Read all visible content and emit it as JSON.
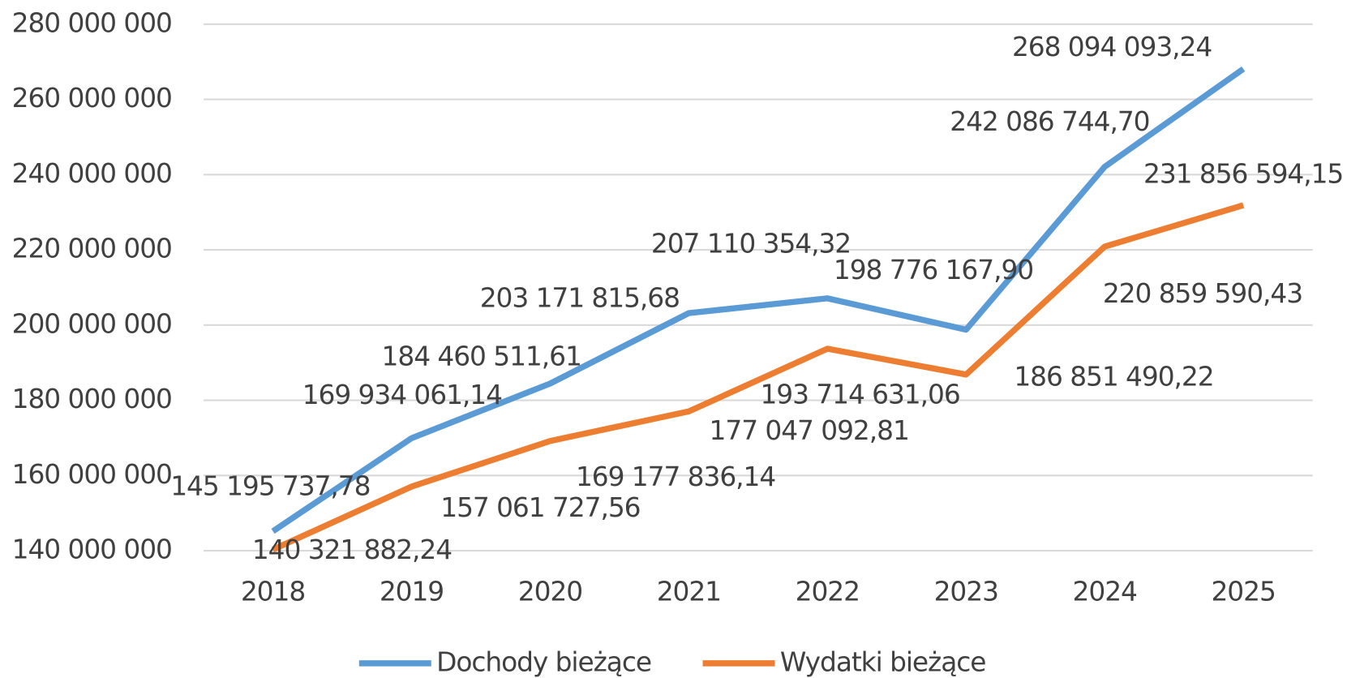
{
  "chart_data": {
    "type": "line",
    "categories": [
      "2018",
      "2019",
      "2020",
      "2021",
      "2022",
      "2023",
      "2024",
      "2025"
    ],
    "series": [
      {
        "name": "Dochody bieżące",
        "color": "#5b9bd5",
        "values": [
          145195737.78,
          169934061.14,
          184460511.61,
          203171815.68,
          207110354.32,
          198776167.9,
          242086744.7,
          268094093.24
        ],
        "value_labels": [
          "145 195 737,78",
          "169 934 061,14",
          "184 460 511,61",
          "203 171 815,68",
          "207 110 354,32",
          "198 776 167,90",
          "242 086 744,70",
          "268 094 093,24"
        ]
      },
      {
        "name": "Wydatki bieżące",
        "color": "#ed7d31",
        "values": [
          140321882.24,
          157061727.56,
          169177836.14,
          177047092.81,
          193714631.06,
          186851490.22,
          220859590.43,
          231856594.15
        ],
        "value_labels": [
          "140 321 882,24",
          "157 061 727,56",
          "169 177 836,14",
          "177 047 092,81",
          "193 714 631,06",
          "186 851 490,22",
          "220 859 590,43",
          "231 856 594,15"
        ]
      }
    ],
    "ylim": [
      140000000,
      280000000
    ],
    "yticks": [
      {
        "value": 140000000,
        "label": "140 000 000"
      },
      {
        "value": 160000000,
        "label": "160 000 000"
      },
      {
        "value": 180000000,
        "label": "180 000 000"
      },
      {
        "value": 200000000,
        "label": "200 000 000"
      },
      {
        "value": 220000000,
        "label": "220 000 000"
      },
      {
        "value": 240000000,
        "label": "240 000 000"
      },
      {
        "value": 260000000,
        "label": "260 000 000"
      },
      {
        "value": 280000000,
        "label": "280 000 000"
      }
    ],
    "grid": true,
    "legend": "bottom"
  }
}
